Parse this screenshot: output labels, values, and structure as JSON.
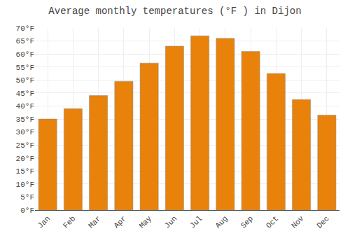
{
  "chart_data": {
    "type": "bar",
    "title": "Average monthly temperatures (°F ) in Dijon",
    "categories": [
      "Jan",
      "Feb",
      "Mar",
      "Apr",
      "May",
      "Jun",
      "Jul",
      "Aug",
      "Sep",
      "Oct",
      "Nov",
      "Dec"
    ],
    "values": [
      35.0,
      39.0,
      44.0,
      49.5,
      56.5,
      63.0,
      67.0,
      66.0,
      61.0,
      52.5,
      42.5,
      36.5
    ],
    "color": "#E8820A",
    "ylim": [
      0,
      70
    ],
    "yticks": [
      {
        "value": 0,
        "label": "0°F"
      },
      {
        "value": 5,
        "label": "5°F"
      },
      {
        "value": 10,
        "label": "10°F"
      },
      {
        "value": 15,
        "label": "15°F"
      },
      {
        "value": 20,
        "label": "20°F"
      },
      {
        "value": 25,
        "label": "25°F"
      },
      {
        "value": 30,
        "label": "30°F"
      },
      {
        "value": 35,
        "label": "35°F"
      },
      {
        "value": 40,
        "label": "40°F"
      },
      {
        "value": 45,
        "label": "45°F"
      },
      {
        "value": 50,
        "label": "50°F"
      },
      {
        "value": 55,
        "label": "55°F"
      },
      {
        "value": 60,
        "label": "60°F"
      },
      {
        "value": 65,
        "label": "65°F"
      },
      {
        "value": 70,
        "label": "70°F"
      }
    ],
    "grid": true
  }
}
